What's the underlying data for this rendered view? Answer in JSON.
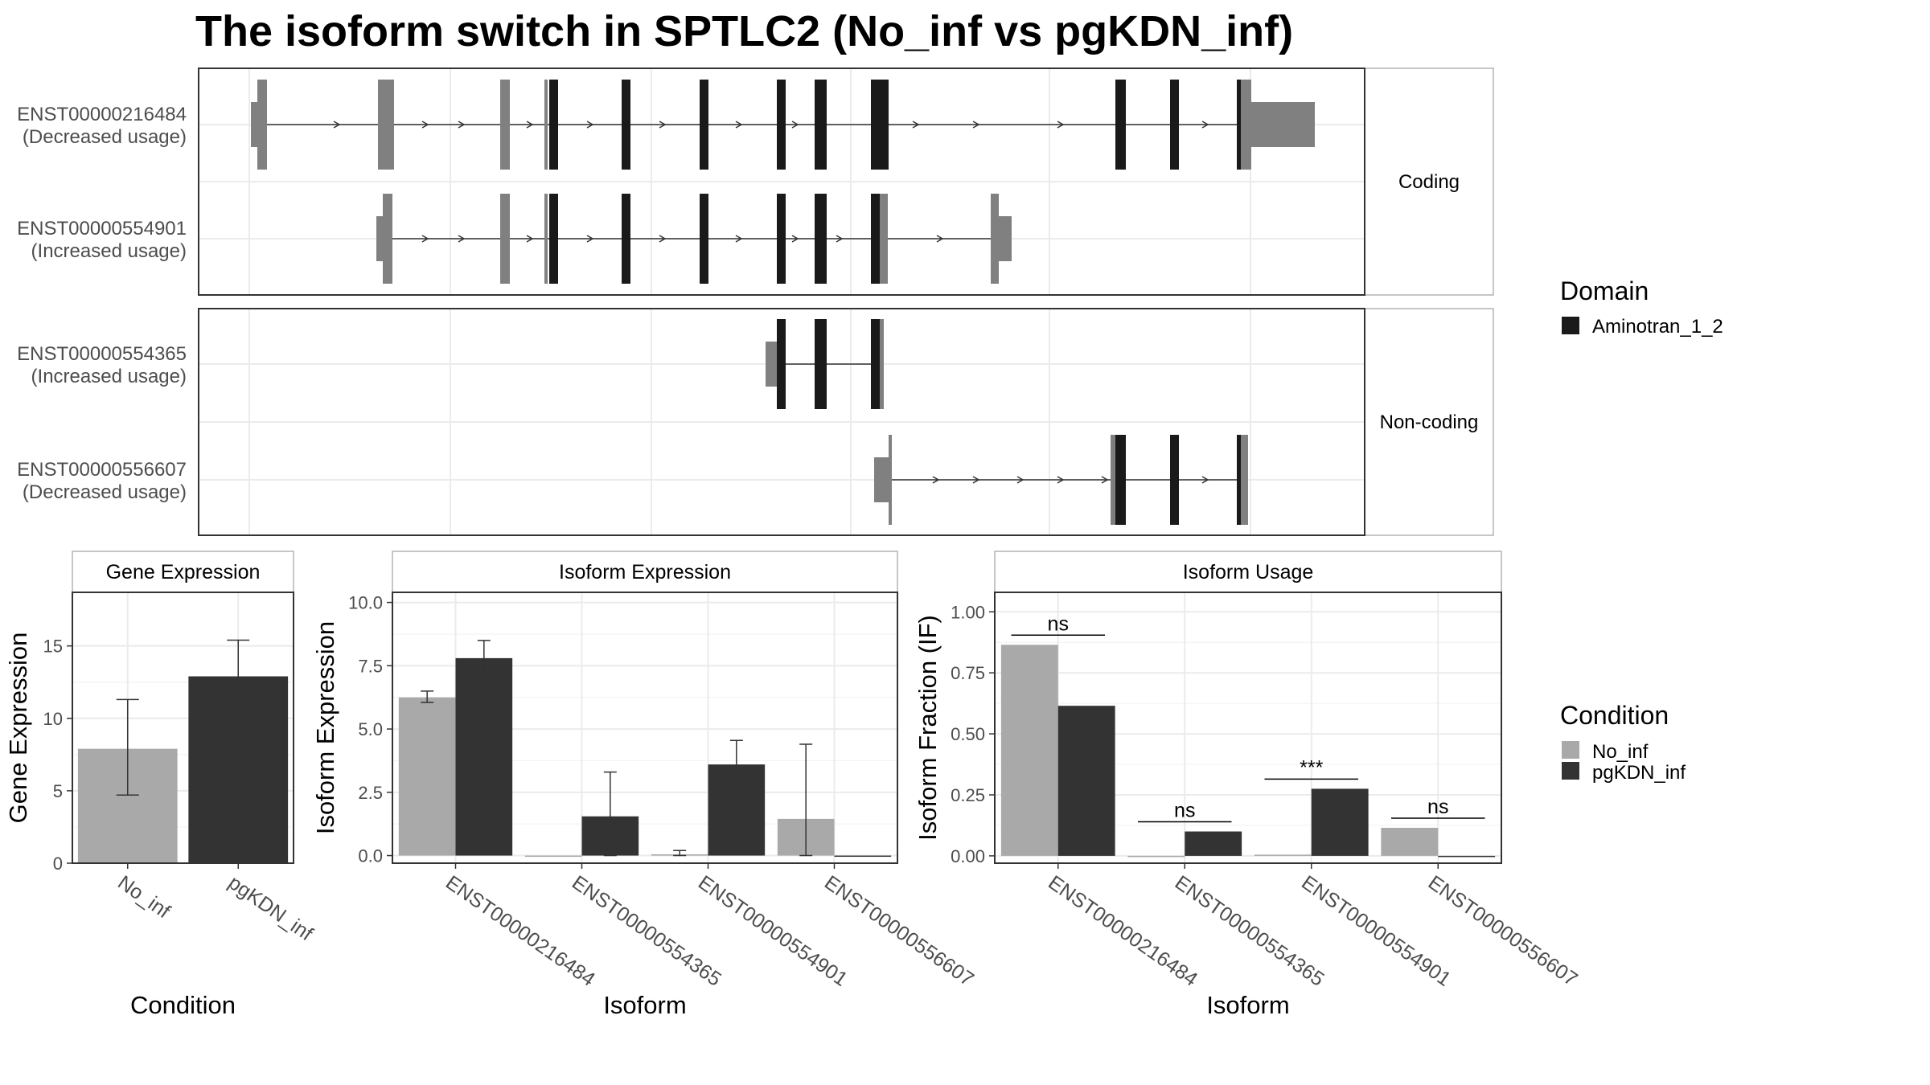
{
  "title": "The isoform switch in SPTLC2 (No_inf vs pgKDN_inf)",
  "transcripts": {
    "coding_strip": "Coding",
    "noncoding_strip": "Non-coding",
    "rows": [
      {
        "id": "ENST00000216484",
        "usage": "(Decreased usage)",
        "group": "Coding"
      },
      {
        "id": "ENST00000554901",
        "usage": "(Increased usage)",
        "group": "Coding"
      },
      {
        "id": "ENST00000554365",
        "usage": "(Increased usage)",
        "group": "Non-coding"
      },
      {
        "id": "ENST00000556607",
        "usage": "(Decreased usage)",
        "group": "Non-coding"
      }
    ]
  },
  "legends": {
    "domain": {
      "title": "Domain",
      "items": [
        {
          "label": "Aminotran_1_2",
          "color": "#1a1a1a"
        }
      ]
    },
    "condition": {
      "title": "Condition",
      "items": [
        {
          "label": "No_inf",
          "color": "#a9a9a9"
        },
        {
          "label": "pgKDN_inf",
          "color": "#333333"
        }
      ]
    }
  },
  "colors": {
    "no_inf": "#a9a9a9",
    "pgkdn_inf": "#333333",
    "domain": "#1a1a1a",
    "utr": "#808080"
  },
  "chart_data": [
    {
      "type": "bar",
      "title": "Gene Expression",
      "xlabel": "Condition",
      "ylabel": "Gene Expression",
      "categories": [
        "No_inf",
        "pgKDN_inf"
      ],
      "values": [
        7.9,
        12.9
      ],
      "error_low": [
        4.7,
        10.4
      ],
      "error_high": [
        11.3,
        15.4
      ],
      "yticks": [
        0,
        5,
        10,
        15
      ],
      "ylim": [
        0,
        18.7
      ]
    },
    {
      "type": "bar",
      "title": "Isoform Expression",
      "xlabel": "Isoform",
      "ylabel": "Isoform Expression",
      "categories": [
        "ENST00000216484",
        "ENST00000554365",
        "ENST00000554901",
        "ENST00000556607"
      ],
      "series": [
        {
          "name": "No_inf",
          "values": [
            6.25,
            0.0,
            0.05,
            1.45
          ],
          "error_low": [
            6.05,
            0.0,
            0.0,
            0.0
          ],
          "error_high": [
            6.5,
            0.0,
            0.2,
            4.4
          ]
        },
        {
          "name": "pgKDN_inf",
          "values": [
            7.8,
            1.55,
            3.6,
            0.0
          ],
          "error_low": [
            7.1,
            0.0,
            2.65,
            0.0
          ],
          "error_high": [
            8.5,
            3.3,
            4.55,
            0.0
          ]
        }
      ],
      "yticks": [
        "0.0",
        "2.5",
        "5.0",
        "7.5",
        "10.0"
      ],
      "ylim": [
        -0.3,
        10.4
      ]
    },
    {
      "type": "bar",
      "title": "Isoform Usage",
      "xlabel": "Isoform",
      "ylabel": "Isoform Fraction (IF)",
      "categories": [
        "ENST00000216484",
        "ENST00000554365",
        "ENST00000554901",
        "ENST00000556607"
      ],
      "series": [
        {
          "name": "No_inf",
          "values": [
            0.865,
            0.0,
            0.005,
            0.115
          ]
        },
        {
          "name": "pgKDN_inf",
          "values": [
            0.615,
            0.1,
            0.275,
            0.0
          ]
        }
      ],
      "significance": [
        "ns",
        "ns",
        "***",
        "ns"
      ],
      "yticks": [
        "0.00",
        "0.25",
        "0.50",
        "0.75",
        "1.00"
      ],
      "ylim": [
        -0.03,
        1.08
      ]
    }
  ]
}
